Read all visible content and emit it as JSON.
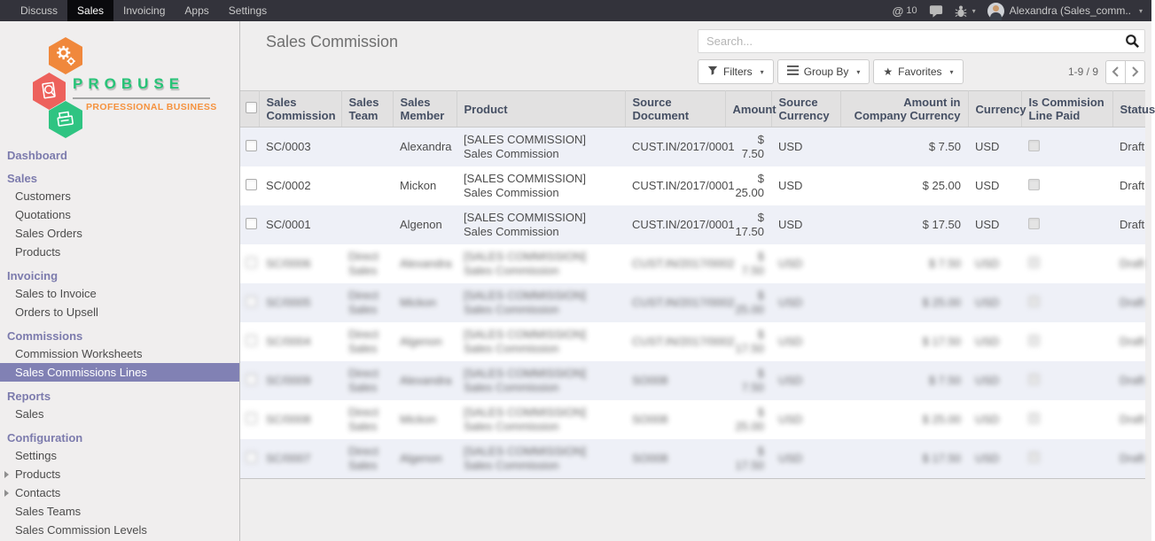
{
  "navbar": {
    "apps": [
      {
        "label": "Discuss",
        "active": false
      },
      {
        "label": "Sales",
        "active": true
      },
      {
        "label": "Invoicing",
        "active": false
      },
      {
        "label": "Apps",
        "active": false
      },
      {
        "label": "Settings",
        "active": false
      }
    ],
    "mention_symbol": "@",
    "messages_count": "10",
    "user_name": "Alexandra (Sales_comm..",
    "dropdown_caret": "▾"
  },
  "sidebar": {
    "logo": {
      "title": "PROBUSE",
      "subtitle": "PROFESSIONAL BUSINESS"
    },
    "sections": [
      {
        "header": "Dashboard",
        "items": []
      },
      {
        "header": "Sales",
        "items": [
          {
            "label": "Customers"
          },
          {
            "label": "Quotations"
          },
          {
            "label": "Sales Orders"
          },
          {
            "label": "Products"
          }
        ]
      },
      {
        "header": "Invoicing",
        "items": [
          {
            "label": "Sales to Invoice"
          },
          {
            "label": "Orders to Upsell"
          }
        ]
      },
      {
        "header": "Commissions",
        "items": [
          {
            "label": "Commission Worksheets"
          },
          {
            "label": "Sales Commissions Lines",
            "selected": true
          }
        ]
      },
      {
        "header": "Reports",
        "items": [
          {
            "label": "Sales"
          }
        ]
      },
      {
        "header": "Configuration",
        "items": [
          {
            "label": "Settings"
          },
          {
            "label": "Products",
            "caret": true
          },
          {
            "label": "Contacts",
            "caret": true
          },
          {
            "label": "Sales Teams"
          },
          {
            "label": "Sales Commission Levels"
          }
        ]
      }
    ]
  },
  "content": {
    "title": "Sales Commission",
    "search_placeholder": "Search...",
    "filter_buttons": [
      {
        "label": "Filters"
      },
      {
        "label": "Group By"
      },
      {
        "label": "Favorites"
      }
    ],
    "pager": {
      "range": "1-9 / 9"
    },
    "table": {
      "columns": [
        {
          "key": "name",
          "label": "Sales Commission"
        },
        {
          "key": "team",
          "label": "Sales Team"
        },
        {
          "key": "member",
          "label": "Sales Member"
        },
        {
          "key": "product",
          "label": "Product"
        },
        {
          "key": "source",
          "label": "Source Document"
        },
        {
          "key": "amount",
          "label": "Amount",
          "align": "right"
        },
        {
          "key": "source_currency",
          "label": "Source Currency"
        },
        {
          "key": "company_amount",
          "label": "Amount in Company Currency",
          "align": "right"
        },
        {
          "key": "currency",
          "label": "Currency"
        },
        {
          "key": "paid",
          "label": "Is Commision Line Paid",
          "type": "checkbox"
        },
        {
          "key": "status",
          "label": "Status"
        }
      ],
      "rows": [
        {
          "name": "SC/0003",
          "team": "",
          "member": "Alexandra",
          "product": "[SALES COMMISSION] Sales Commission",
          "source": "CUST.IN/2017/0001",
          "amount": "$ 7.50",
          "source_currency": "USD",
          "company_amount": "$ 7.50",
          "currency": "USD",
          "paid": false,
          "status": "Draft",
          "blurred": false
        },
        {
          "name": "SC/0002",
          "team": "",
          "member": "Mickon",
          "product": "[SALES COMMISSION] Sales Commission",
          "source": "CUST.IN/2017/0001",
          "amount": "$ 25.00",
          "source_currency": "USD",
          "company_amount": "$ 25.00",
          "currency": "USD",
          "paid": false,
          "status": "Draft",
          "blurred": false
        },
        {
          "name": "SC/0001",
          "team": "",
          "member": "Algenon",
          "product": "[SALES COMMISSION] Sales Commission",
          "source": "CUST.IN/2017/0001",
          "amount": "$ 17.50",
          "source_currency": "USD",
          "company_amount": "$ 17.50",
          "currency": "USD",
          "paid": false,
          "status": "Draft",
          "blurred": false
        },
        {
          "name": "SC/0006",
          "team": "Direct Sales",
          "member": "Alexandra",
          "product": "[SALES COMMISSION] Sales Commission",
          "source": "CUST.IN/2017/0002",
          "amount": "$ 7.50",
          "source_currency": "USD",
          "company_amount": "$ 7.50",
          "currency": "USD",
          "paid": false,
          "status": "Draft",
          "blurred": true
        },
        {
          "name": "SC/0005",
          "team": "Direct Sales",
          "member": "Mickon",
          "product": "[SALES COMMISSION] Sales Commission",
          "source": "CUST.IN/2017/0002",
          "amount": "$ 25.00",
          "source_currency": "USD",
          "company_amount": "$ 25.00",
          "currency": "USD",
          "paid": false,
          "status": "Draft",
          "blurred": true
        },
        {
          "name": "SC/0004",
          "team": "Direct Sales",
          "member": "Algenon",
          "product": "[SALES COMMISSION] Sales Commission",
          "source": "CUST.IN/2017/0002",
          "amount": "$ 17.50",
          "source_currency": "USD",
          "company_amount": "$ 17.50",
          "currency": "USD",
          "paid": false,
          "status": "Draft",
          "blurred": true
        },
        {
          "name": "SC/0009",
          "team": "Direct Sales",
          "member": "Alexandra",
          "product": "[SALES COMMISSION] Sales Commission",
          "source": "SO008",
          "amount": "$ 7.50",
          "source_currency": "USD",
          "company_amount": "$ 7.50",
          "currency": "USD",
          "paid": false,
          "status": "Draft",
          "blurred": true
        },
        {
          "name": "SC/0008",
          "team": "Direct Sales",
          "member": "Mickon",
          "product": "[SALES COMMISSION] Sales Commission",
          "source": "SO008",
          "amount": "$ 25.00",
          "source_currency": "USD",
          "company_amount": "$ 25.00",
          "currency": "USD",
          "paid": false,
          "status": "Draft",
          "blurred": true
        },
        {
          "name": "SC/0007",
          "team": "Direct Sales",
          "member": "Algenon",
          "product": "[SALES COMMISSION] Sales Commission",
          "source": "SO008",
          "amount": "$ 17.50",
          "source_currency": "USD",
          "company_amount": "$ 17.50",
          "currency": "USD",
          "paid": false,
          "status": "Draft",
          "blurred": true
        }
      ]
    }
  },
  "colors": {
    "navbar_bg": "#33333b",
    "navbar_active_bg": "#0a0a0d",
    "sidebar_bg": "#f0eeee",
    "accent_purple": "#7c7bad",
    "selected_purple": "#8181b4",
    "logo_green": "#27c377",
    "logo_orange": "#f0883c",
    "logo_red": "#ed615c",
    "row_alt": "#eef0f7",
    "header_bg": "#e2e1e1"
  }
}
